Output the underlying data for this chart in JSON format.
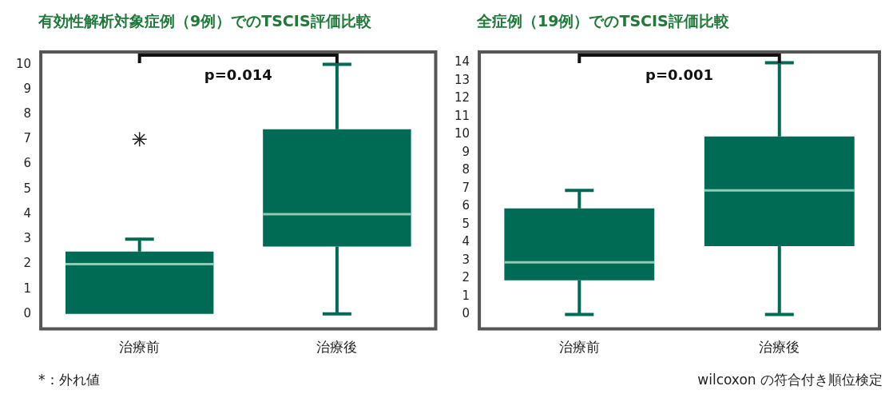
{
  "chart_data": [
    {
      "type": "box",
      "title": "有効性解析対象症例（9例）でのTSCIS評価比較",
      "categories": [
        "治療前",
        "治療後"
      ],
      "color": "#006b54",
      "marker": "star",
      "boxes": [
        {
          "low": 0,
          "q1": 0,
          "median": 2,
          "q3": 2.5,
          "high": 3,
          "outliers": [
            7
          ]
        },
        {
          "low": 0,
          "q1": 2.7,
          "median": 4,
          "q3": 7.4,
          "high": 10
        }
      ],
      "ylim": [
        -0.6,
        10.5
      ],
      "yticks": [
        0,
        1,
        2,
        3,
        4,
        5,
        6,
        7,
        8,
        9,
        10
      ],
      "grid": false,
      "annotations": [
        "p=0.014",
        "*：外れ値"
      ]
    },
    {
      "type": "box",
      "title": "全症例（19例）でのTSCIS評価比較",
      "categories": [
        "治療前",
        "治療後"
      ],
      "color": "#006b54",
      "boxes": [
        {
          "low": 0,
          "q1": 1.9,
          "median": 2.9,
          "q3": 5.9,
          "high": 6.9
        },
        {
          "low": 0,
          "q1": 3.8,
          "median": 6.9,
          "q3": 9.9,
          "high": 14
        }
      ],
      "ylim": [
        -0.8,
        14.6
      ],
      "yticks": [
        0,
        1,
        2,
        3,
        4,
        5,
        6,
        7,
        8,
        9,
        10,
        11,
        12,
        13,
        14
      ],
      "grid": false,
      "annotations": [
        "p=0.001",
        "wilcoxon の符合付き順位検定"
      ]
    }
  ]
}
